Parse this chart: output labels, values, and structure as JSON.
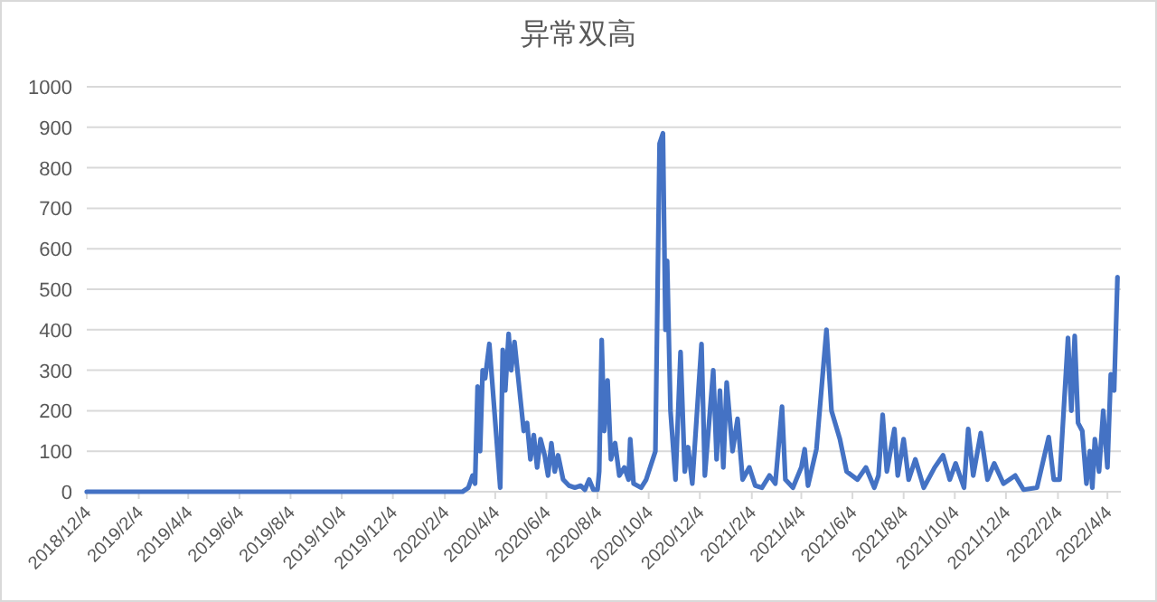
{
  "chart_data": {
    "type": "line",
    "title": "异常双高",
    "color": "#4472c4",
    "grid": "y",
    "xlim": [
      "2018-12-04",
      "2022-04-20"
    ],
    "ylim": [
      0,
      1000
    ],
    "yticks": [
      0,
      100,
      200,
      300,
      400,
      500,
      600,
      700,
      800,
      900,
      1000
    ],
    "xticks": [
      {
        "value": "2018-12-04",
        "label": "2018/12/4"
      },
      {
        "value": "2019-02-04",
        "label": "2019/2/4"
      },
      {
        "value": "2019-04-04",
        "label": "2019/4/4"
      },
      {
        "value": "2019-06-04",
        "label": "2019/6/4"
      },
      {
        "value": "2019-08-04",
        "label": "2019/8/4"
      },
      {
        "value": "2019-10-04",
        "label": "2019/10/4"
      },
      {
        "value": "2019-12-04",
        "label": "2019/12/4"
      },
      {
        "value": "2020-02-04",
        "label": "2020/2/4"
      },
      {
        "value": "2020-04-04",
        "label": "2020/4/4"
      },
      {
        "value": "2020-06-04",
        "label": "2020/6/4"
      },
      {
        "value": "2020-08-04",
        "label": "2020/8/4"
      },
      {
        "value": "2020-10-04",
        "label": "2020/10/4"
      },
      {
        "value": "2020-12-04",
        "label": "2020/12/4"
      },
      {
        "value": "2021-02-04",
        "label": "2021/2/4"
      },
      {
        "value": "2021-04-04",
        "label": "2021/4/4"
      },
      {
        "value": "2021-06-04",
        "label": "2021/6/4"
      },
      {
        "value": "2021-08-04",
        "label": "2021/8/4"
      },
      {
        "value": "2021-10-04",
        "label": "2021/10/4"
      },
      {
        "value": "2021-12-04",
        "label": "2021/12/4"
      },
      {
        "value": "2022-02-04",
        "label": "2022/2/4"
      },
      {
        "value": "2022-04-04",
        "label": "2022/4/4"
      }
    ],
    "x": [
      "2018-12-04",
      "2020-02-25",
      "2020-03-03",
      "2020-03-08",
      "2020-03-11",
      "2020-03-14",
      "2020-03-17",
      "2020-03-20",
      "2020-03-23",
      "2020-03-28",
      "2020-04-10",
      "2020-04-13",
      "2020-04-16",
      "2020-04-20",
      "2020-04-23",
      "2020-04-27",
      "2020-05-03",
      "2020-05-08",
      "2020-05-12",
      "2020-05-16",
      "2020-05-20",
      "2020-05-24",
      "2020-05-28",
      "2020-06-02",
      "2020-06-06",
      "2020-06-10",
      "2020-06-14",
      "2020-06-18",
      "2020-06-24",
      "2020-07-01",
      "2020-07-08",
      "2020-07-15",
      "2020-07-20",
      "2020-07-25",
      "2020-07-30",
      "2020-08-04",
      "2020-08-06",
      "2020-08-09",
      "2020-08-12",
      "2020-08-16",
      "2020-08-20",
      "2020-08-25",
      "2020-08-30",
      "2020-09-05",
      "2020-09-10",
      "2020-09-12",
      "2020-09-16",
      "2020-09-25",
      "2020-10-01",
      "2020-10-12",
      "2020-10-17",
      "2020-10-21",
      "2020-10-24",
      "2020-10-26",
      "2020-10-30",
      "2020-11-05",
      "2020-11-11",
      "2020-11-16",
      "2020-11-20",
      "2020-11-25",
      "2020-12-06",
      "2020-12-10",
      "2020-12-20",
      "2020-12-24",
      "2020-12-28",
      "2021-01-01",
      "2021-01-05",
      "2021-01-12",
      "2021-01-18",
      "2021-01-24",
      "2021-02-01",
      "2021-02-08",
      "2021-02-16",
      "2021-02-25",
      "2021-03-04",
      "2021-03-12",
      "2021-03-16",
      "2021-03-25",
      "2021-04-04",
      "2021-04-08",
      "2021-04-12",
      "2021-04-22",
      "2021-05-04",
      "2021-05-10",
      "2021-05-20",
      "2021-05-28",
      "2021-06-10",
      "2021-06-20",
      "2021-06-30",
      "2021-07-05",
      "2021-07-10",
      "2021-07-15",
      "2021-07-24",
      "2021-07-28",
      "2021-08-04",
      "2021-08-10",
      "2021-08-18",
      "2021-08-28",
      "2021-09-10",
      "2021-09-20",
      "2021-09-28",
      "2021-10-05",
      "2021-10-15",
      "2021-10-20",
      "2021-10-26",
      "2021-11-04",
      "2021-11-12",
      "2021-11-20",
      "2021-12-01",
      "2021-12-15",
      "2021-12-25",
      "2022-01-10",
      "2022-01-24",
      "2022-01-30",
      "2022-02-06",
      "2022-02-16",
      "2022-02-20",
      "2022-02-24",
      "2022-02-28",
      "2022-03-05",
      "2022-03-10",
      "2022-03-14",
      "2022-03-17",
      "2022-03-20",
      "2022-03-25",
      "2022-03-30",
      "2022-04-04",
      "2022-04-08",
      "2022-04-12",
      "2022-04-16"
    ],
    "values": [
      0,
      0,
      10,
      40,
      20,
      260,
      100,
      300,
      280,
      365,
      10,
      350,
      250,
      390,
      300,
      370,
      250,
      150,
      170,
      80,
      140,
      60,
      130,
      90,
      40,
      120,
      50,
      90,
      30,
      15,
      10,
      15,
      5,
      30,
      5,
      5,
      50,
      375,
      150,
      275,
      80,
      120,
      40,
      60,
      30,
      130,
      20,
      10,
      30,
      100,
      860,
      885,
      400,
      570,
      200,
      30,
      345,
      50,
      110,
      20,
      365,
      40,
      300,
      80,
      250,
      60,
      270,
      100,
      180,
      30,
      60,
      15,
      10,
      40,
      20,
      210,
      30,
      10,
      60,
      105,
      15,
      105,
      400,
      200,
      130,
      50,
      30,
      60,
      10,
      40,
      190,
      50,
      155,
      40,
      130,
      30,
      80,
      10,
      60,
      90,
      30,
      70,
      10,
      155,
      40,
      145,
      30,
      70,
      20,
      40,
      5,
      10,
      135,
      30,
      30,
      380,
      200,
      385,
      170,
      150,
      20,
      100,
      10,
      130,
      50,
      200,
      60,
      290,
      250,
      530
    ]
  }
}
